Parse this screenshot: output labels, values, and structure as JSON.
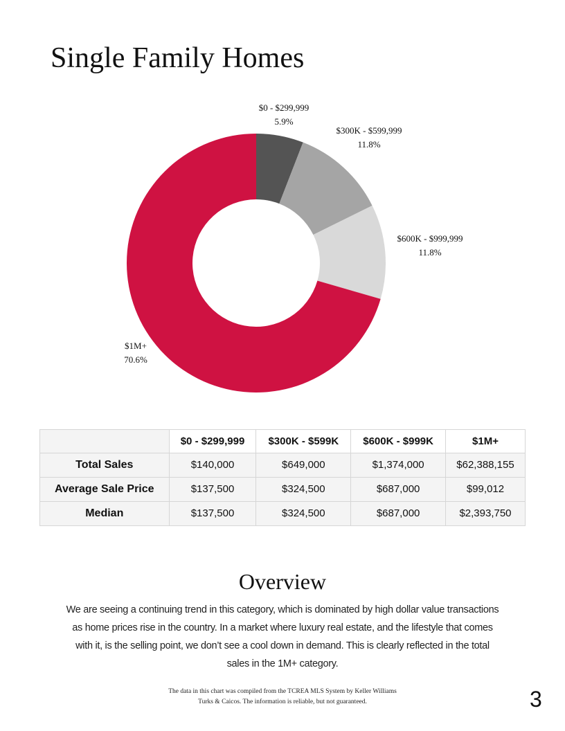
{
  "chart_data": {
    "type": "pie",
    "title": "Single Family Homes",
    "donut": true,
    "categories": [
      "$0 - $299,999",
      "$300K - $599,999",
      "$600K - $999,999",
      "$1M+"
    ],
    "values": [
      5.9,
      11.8,
      11.8,
      70.6
    ],
    "value_labels": [
      "5.9%",
      "11.8%",
      "11.8%",
      "70.6%"
    ],
    "colors": [
      "#545454",
      "#a5a5a5",
      "#d9d9d9",
      "#cf1242"
    ]
  },
  "table": {
    "columns": [
      "$0 - $299,999",
      "$300K - $599K",
      "$600K - $999K",
      "$1M+"
    ],
    "rows": [
      {
        "label": "Total Sales",
        "cells": [
          "$140,000",
          "$649,000",
          "$1,374,000",
          "$62,388,155"
        ]
      },
      {
        "label": "Average Sale Price",
        "cells": [
          "$137,500",
          "$324,500",
          "$687,000",
          "$99,012"
        ]
      },
      {
        "label": "Median",
        "cells": [
          "$137,500",
          "$324,500",
          "$687,000",
          "$2,393,750"
        ]
      }
    ]
  },
  "overview": {
    "heading": "Overview",
    "text": "We are seeing a continuing trend in this category, which is dominated by high dollar value transactions as home prices rise in the country. In a market where luxury real estate, and the lifestyle that comes with it, is the selling point, we don’t see a cool down in demand. This is clearly reflected in the total sales in the 1M+ category."
  },
  "footer": "The data in this chart was compiled from the TCREA MLS System by Keller Williams Turks & Caicos. The information is reliable, but not guaranteed.",
  "page_number": "3"
}
